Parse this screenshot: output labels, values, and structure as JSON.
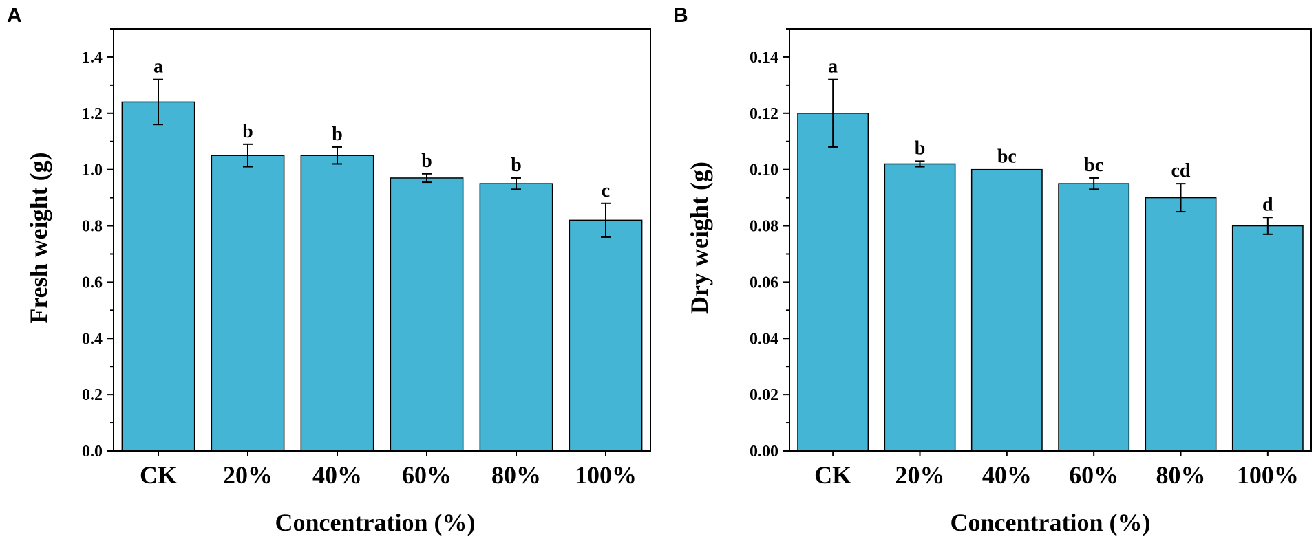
{
  "chart_data": [
    {
      "panel": "A",
      "type": "bar",
      "categories": [
        "CK",
        "20%",
        "40%",
        "60%",
        "80%",
        "100%"
      ],
      "values": [
        1.24,
        1.05,
        1.05,
        0.97,
        0.95,
        0.82
      ],
      "errors": [
        0.08,
        0.04,
        0.03,
        0.015,
        0.02,
        0.06
      ],
      "significance": [
        "a",
        "b",
        "b",
        "b",
        "b",
        "c"
      ],
      "xlabel": "Concentration (%)",
      "ylabel": "Fresh weight (g)",
      "ylim": [
        0,
        1.5
      ],
      "yticks": [
        0.0,
        0.2,
        0.4,
        0.6,
        0.8,
        1.0,
        1.2,
        1.4
      ],
      "ytick_labels": [
        "0.0",
        "0.2",
        "0.4",
        "0.6",
        "0.8",
        "1.0",
        "1.2",
        "1.4"
      ],
      "bar_color": "#45B5D6"
    },
    {
      "panel": "B",
      "type": "bar",
      "categories": [
        "CK",
        "20%",
        "40%",
        "60%",
        "80%",
        "100%"
      ],
      "values": [
        0.12,
        0.102,
        0.1,
        0.095,
        0.09,
        0.08
      ],
      "errors": [
        0.012,
        0.001,
        0.0,
        0.002,
        0.005,
        0.003
      ],
      "significance": [
        "a",
        "b",
        "bc",
        "bc",
        "cd",
        "d"
      ],
      "xlabel": "Concentration (%)",
      "ylabel": "Dry weight (g)",
      "ylim": [
        0,
        0.15
      ],
      "yticks": [
        0.0,
        0.02,
        0.04,
        0.06,
        0.08,
        0.1,
        0.12,
        0.14
      ],
      "ytick_labels": [
        "0.00",
        "0.02",
        "0.04",
        "0.06",
        "0.08",
        "0.10",
        "0.12",
        "0.14"
      ],
      "bar_color": "#45B5D6"
    }
  ]
}
